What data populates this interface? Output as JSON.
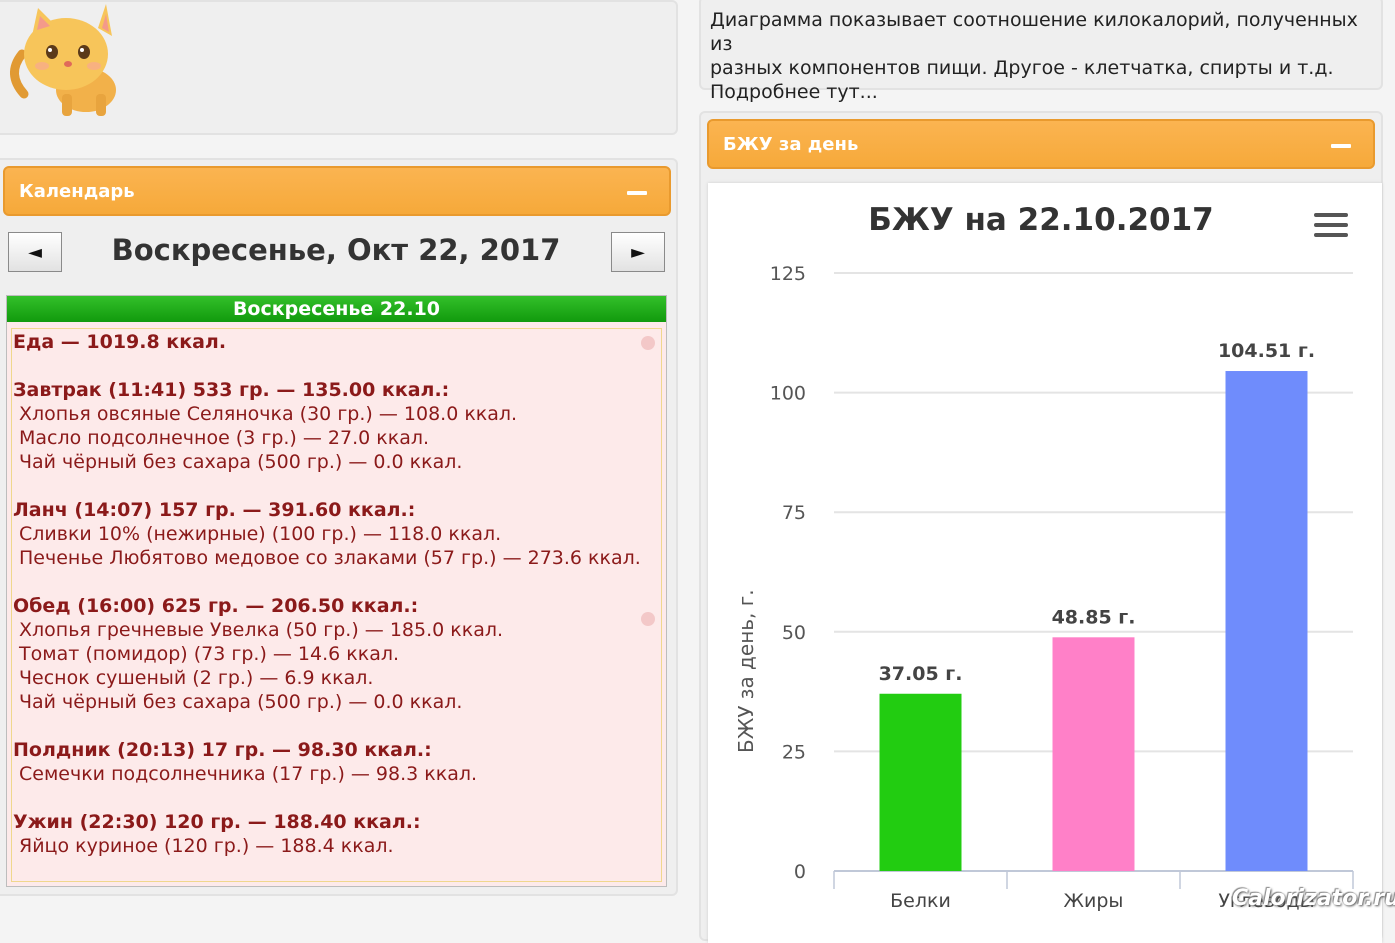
{
  "info": {
    "text_lines": [
      "Диаграмма показывает соотношение килокалорий, полученных из",
      "разных компонентов пищи. Другое - клетчатка, спирты и т.д.",
      "Подробнее тут..."
    ]
  },
  "calendar": {
    "header": "Календарь",
    "prev": "◄",
    "next": "►",
    "date_title": "Воскресенье, Окт 22, 2017",
    "day_label": "Воскресенье 22.10",
    "lines": [
      {
        "text": "Еда — 1019.8 ккал.",
        "kind": "bold"
      },
      {
        "text": "Завтрак (11:41) 533 гр. — 135.00 ккал.:",
        "kind": "bold"
      },
      {
        "text": "Хлопья овсяные Селяночка (30 гр.) — 108.0 ккал.",
        "kind": "item"
      },
      {
        "text": "Масло подсолнечное (3 гр.) — 27.0 ккал.",
        "kind": "item"
      },
      {
        "text": "Чай чёрный без сахара (500 гр.) — 0.0 ккал.",
        "kind": "item"
      },
      {
        "text": "Ланч (14:07) 157 гр. — 391.60 ккал.:",
        "kind": "bold"
      },
      {
        "text": "Сливки 10% (нежирные) (100 гр.) — 118.0 ккал.",
        "kind": "item"
      },
      {
        "text": "Печенье Любятово медовое со злаками (57 гр.) — 273.6 ккал.",
        "kind": "item"
      },
      {
        "text": "Обед (16:00) 625 гр. — 206.50 ккал.:",
        "kind": "bold"
      },
      {
        "text": "Хлопья гречневые Увелка (50 гр.) — 185.0 ккал.",
        "kind": "item"
      },
      {
        "text": "Томат (помидор) (73 гр.) — 14.6 ккал.",
        "kind": "item"
      },
      {
        "text": "Чеснок сушеный (2 гр.) — 6.9 ккал.",
        "kind": "item"
      },
      {
        "text": "Чай чёрный без сахара (500 гр.) — 0.0 ккал.",
        "kind": "item"
      },
      {
        "text": "Полдник (20:13) 17 гр. — 98.30 ккал.:",
        "kind": "bold"
      },
      {
        "text": "Семечки подсолнечника (17 гр.) — 98.3 ккал.",
        "kind": "item"
      },
      {
        "text": "Ужин (22:30) 120 гр. — 188.40 ккал.:",
        "kind": "bold"
      },
      {
        "text": "Яйцо куриное (120 гр.) — 188.4 ккал.",
        "kind": "item"
      }
    ]
  },
  "bju_panel": {
    "header": "БЖУ за день"
  },
  "chart_data": {
    "type": "bar",
    "title": "БЖУ на 22.10.2017",
    "ylabel": "БЖУ за день, г.",
    "xlabel": "",
    "categories": [
      "Белки",
      "Жиры",
      "Углеводы"
    ],
    "values": [
      37.05,
      48.85,
      104.51
    ],
    "data_labels": [
      "37.05 г.",
      "48.85 г.",
      "104.51 г."
    ],
    "colors": [
      "#22cc11",
      "#ff80c8",
      "#6f8cfc"
    ],
    "ylim": [
      0,
      125
    ],
    "yticks": [
      0,
      25,
      50,
      75,
      100,
      125
    ],
    "grid": true
  },
  "watermark": "Calorizator.ru"
}
